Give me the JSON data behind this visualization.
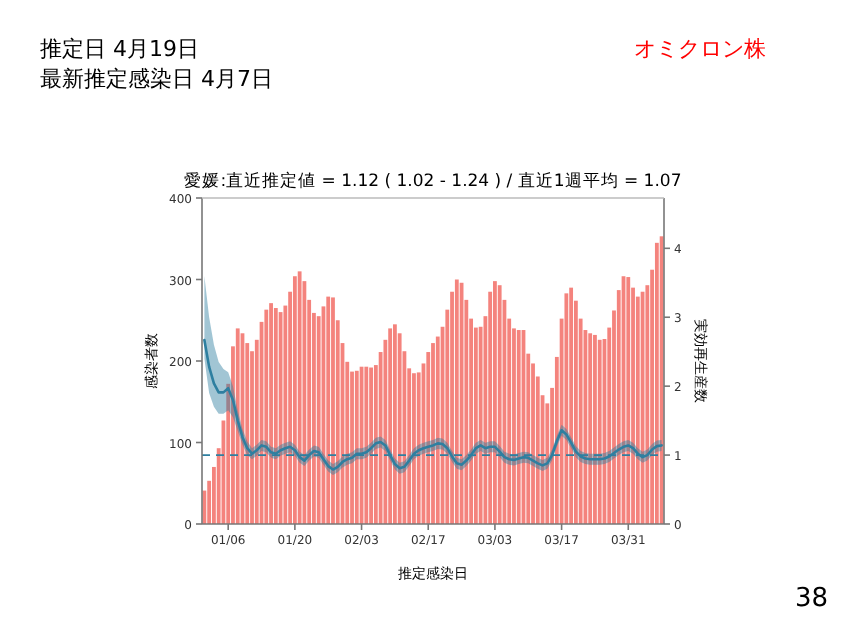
{
  "chart_data": {
    "type": "bar",
    "title": "愛媛:直近推定値 = 1.12 ( 1.02 - 1.24 ) / 直近1週平均 = 1.07",
    "xlabel": "推定感染日",
    "ylabel": "感染者数",
    "y2label": "実効再生産数",
    "annotations": [
      "推定日  4月19日",
      "最新推定感染日  4月7日",
      "オミクロン株",
      "38"
    ],
    "categories": [
      null,
      null,
      null,
      null,
      null,
      "01/06",
      null,
      null,
      null,
      null,
      null,
      null,
      null,
      null,
      null,
      null,
      null,
      null,
      null,
      "01/20",
      null,
      null,
      null,
      null,
      null,
      null,
      null,
      null,
      null,
      null,
      null,
      null,
      null,
      "02/03",
      null,
      null,
      null,
      null,
      null,
      null,
      null,
      null,
      null,
      null,
      null,
      null,
      null,
      "02/17",
      null,
      null,
      null,
      null,
      null,
      null,
      null,
      null,
      null,
      null,
      null,
      null,
      null,
      "03/03",
      null,
      null,
      null,
      null,
      null,
      null,
      null,
      null,
      null,
      null,
      null,
      null,
      null,
      "03/17",
      null,
      null,
      null,
      null,
      null,
      null,
      null,
      null,
      null,
      null,
      null,
      null,
      null,
      "03/31",
      null,
      null,
      null,
      null,
      null,
      null,
      null
    ],
    "ylim": [
      0,
      400
    ],
    "yticks": [
      0,
      100,
      200,
      300,
      400
    ],
    "y2lim": [
      0,
      4.73
    ],
    "y2ticks": [
      0,
      1,
      2,
      3,
      4
    ],
    "grid": false,
    "series": [
      {
        "color": "#f4837d",
        "values": [
          41,
          53,
          70,
          93,
          127,
          172,
          218,
          240,
          234,
          222,
          212,
          226,
          248,
          263,
          271,
          265,
          260,
          268,
          285,
          304,
          310,
          298,
          275,
          259,
          255,
          267,
          279,
          278,
          250,
          222,
          199,
          187,
          188,
          193,
          193,
          192,
          195,
          211,
          226,
          240,
          245,
          234,
          212,
          191,
          185,
          186,
          197,
          211,
          222,
          230,
          242,
          263,
          285,
          300,
          296,
          275,
          252,
          241,
          242,
          255,
          285,
          298,
          293,
          275,
          252,
          240,
          238,
          238,
          209,
          197,
          181,
          158,
          148,
          167,
          205,
          252,
          283,
          290,
          274,
          252,
          238,
          234,
          232,
          226,
          227,
          241,
          262,
          287,
          304,
          303,
          290,
          279,
          285,
          293,
          312,
          345,
          353
        ]
      },
      {
        "type": "line",
        "axis": "y2",
        "color": "#2e7fa0",
        "values": [
          2.67,
          2.28,
          2.04,
          1.91,
          1.91,
          1.97,
          1.8,
          1.5,
          1.26,
          1.1,
          1.02,
          1.07,
          1.14,
          1.12,
          1.04,
          1.02,
          1.07,
          1.1,
          1.12,
          1.07,
          0.97,
          0.92,
          1.0,
          1.06,
          1.04,
          0.94,
          0.84,
          0.79,
          0.83,
          0.9,
          0.94,
          0.96,
          1.02,
          1.02,
          1.04,
          1.1,
          1.17,
          1.19,
          1.14,
          1.0,
          0.87,
          0.81,
          0.83,
          0.92,
          1.02,
          1.07,
          1.1,
          1.12,
          1.14,
          1.17,
          1.16,
          1.1,
          0.98,
          0.88,
          0.86,
          0.92,
          1.0,
          1.1,
          1.14,
          1.1,
          1.12,
          1.12,
          1.05,
          0.97,
          0.94,
          0.93,
          0.95,
          0.97,
          0.96,
          0.92,
          0.88,
          0.85,
          0.88,
          1.0,
          1.2,
          1.36,
          1.3,
          1.18,
          1.05,
          0.98,
          0.95,
          0.94,
          0.94,
          0.94,
          0.95,
          0.98,
          1.03,
          1.08,
          1.12,
          1.14,
          1.1,
          1.02,
          0.97,
          1.0,
          1.08,
          1.13,
          1.14
        ],
        "upper": [
          3.6,
          3.0,
          2.6,
          2.35,
          2.25,
          2.2,
          2.0,
          1.65,
          1.38,
          1.2,
          1.1,
          1.15,
          1.22,
          1.2,
          1.12,
          1.1,
          1.15,
          1.18,
          1.2,
          1.15,
          1.05,
          1.0,
          1.08,
          1.14,
          1.12,
          1.02,
          0.92,
          0.87,
          0.91,
          0.98,
          1.02,
          1.04,
          1.1,
          1.1,
          1.12,
          1.18,
          1.25,
          1.27,
          1.22,
          1.08,
          0.95,
          0.89,
          0.91,
          1.0,
          1.1,
          1.15,
          1.18,
          1.2,
          1.22,
          1.25,
          1.24,
          1.18,
          1.06,
          0.96,
          0.94,
          1.0,
          1.08,
          1.18,
          1.22,
          1.18,
          1.2,
          1.2,
          1.13,
          1.05,
          1.02,
          1.01,
          1.03,
          1.05,
          1.04,
          1.0,
          0.96,
          0.93,
          0.96,
          1.08,
          1.28,
          1.44,
          1.38,
          1.26,
          1.13,
          1.06,
          1.03,
          1.02,
          1.02,
          1.02,
          1.03,
          1.06,
          1.11,
          1.16,
          1.2,
          1.22,
          1.18,
          1.1,
          1.05,
          1.08,
          1.16,
          1.21,
          1.22
        ],
        "lower": [
          2.4,
          1.9,
          1.7,
          1.6,
          1.6,
          1.65,
          1.55,
          1.35,
          1.15,
          1.0,
          0.94,
          0.99,
          1.06,
          1.04,
          0.96,
          0.94,
          0.99,
          1.02,
          1.04,
          0.99,
          0.89,
          0.84,
          0.92,
          0.98,
          0.96,
          0.86,
          0.76,
          0.71,
          0.75,
          0.82,
          0.86,
          0.88,
          0.94,
          0.94,
          0.96,
          1.02,
          1.09,
          1.11,
          1.06,
          0.92,
          0.79,
          0.73,
          0.75,
          0.84,
          0.94,
          0.99,
          1.02,
          1.04,
          1.06,
          1.09,
          1.08,
          1.02,
          0.9,
          0.8,
          0.78,
          0.84,
          0.92,
          1.02,
          1.06,
          1.02,
          1.04,
          1.04,
          0.97,
          0.89,
          0.86,
          0.85,
          0.87,
          0.89,
          0.88,
          0.84,
          0.8,
          0.77,
          0.8,
          0.92,
          1.12,
          1.28,
          1.22,
          1.1,
          0.97,
          0.9,
          0.87,
          0.86,
          0.86,
          0.86,
          0.87,
          0.9,
          0.95,
          1.0,
          1.04,
          1.06,
          1.02,
          0.94,
          0.89,
          0.92,
          1.0,
          1.05,
          1.06
        ]
      }
    ],
    "ref_lines": [
      {
        "axis": "y2",
        "value": 1,
        "color": "#2e7fa0",
        "line_style": "dashed"
      }
    ]
  }
}
